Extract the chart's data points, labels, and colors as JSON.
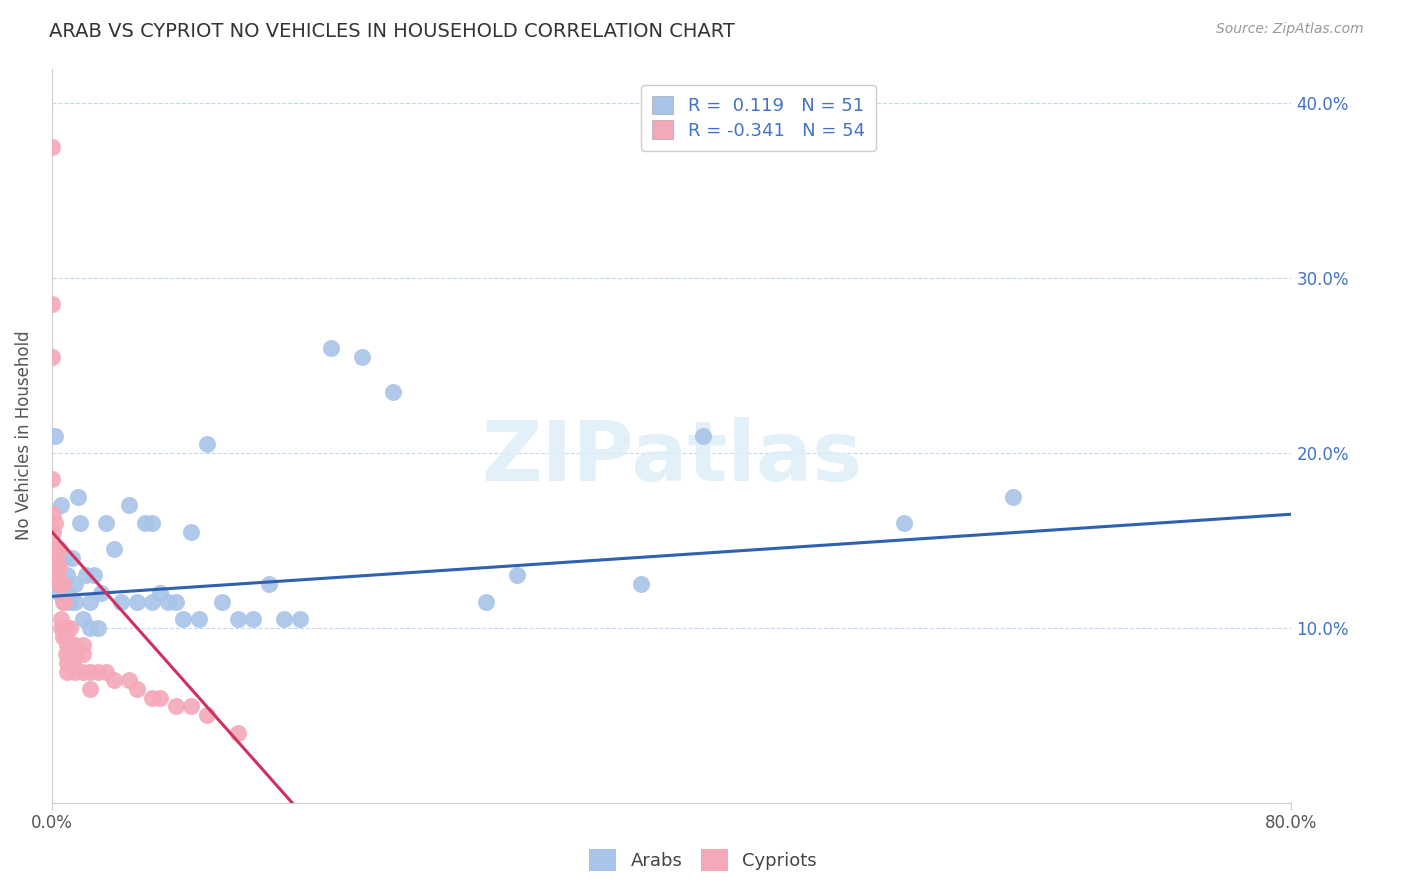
{
  "title": "ARAB VS CYPRIOT NO VEHICLES IN HOUSEHOLD CORRELATION CHART",
  "source": "Source: ZipAtlas.com",
  "ylabel": "No Vehicles in Household",
  "xlim": [
    0.0,
    0.8
  ],
  "ylim": [
    0.0,
    0.42
  ],
  "arab_R": 0.119,
  "arab_N": 51,
  "cypriot_R": -0.341,
  "cypriot_N": 54,
  "arab_color": "#a8c4e8",
  "cypriot_color": "#f4a8b8",
  "arab_line_color": "#3060b0",
  "cypriot_line_color": "#d03060",
  "watermark": "ZIPatlas",
  "background_color": "#ffffff",
  "grid_color": "#c8d8ec",
  "arab_points_x": [
    0.002,
    0.003,
    0.005,
    0.006,
    0.007,
    0.008,
    0.01,
    0.01,
    0.012,
    0.013,
    0.015,
    0.015,
    0.017,
    0.018,
    0.02,
    0.022,
    0.025,
    0.025,
    0.027,
    0.03,
    0.032,
    0.035,
    0.04,
    0.045,
    0.05,
    0.055,
    0.06,
    0.065,
    0.065,
    0.07,
    0.075,
    0.08,
    0.085,
    0.09,
    0.095,
    0.1,
    0.11,
    0.12,
    0.13,
    0.14,
    0.15,
    0.16,
    0.18,
    0.2,
    0.22,
    0.28,
    0.3,
    0.38,
    0.42,
    0.55,
    0.62
  ],
  "arab_points_y": [
    0.21,
    0.135,
    0.12,
    0.17,
    0.125,
    0.14,
    0.12,
    0.13,
    0.115,
    0.14,
    0.115,
    0.125,
    0.175,
    0.16,
    0.105,
    0.13,
    0.1,
    0.115,
    0.13,
    0.1,
    0.12,
    0.16,
    0.145,
    0.115,
    0.17,
    0.115,
    0.16,
    0.16,
    0.115,
    0.12,
    0.115,
    0.115,
    0.105,
    0.155,
    0.105,
    0.205,
    0.115,
    0.105,
    0.105,
    0.125,
    0.105,
    0.105,
    0.26,
    0.255,
    0.235,
    0.115,
    0.13,
    0.125,
    0.21,
    0.16,
    0.175
  ],
  "cypriot_points_x": [
    0.0,
    0.0,
    0.0,
    0.0,
    0.001,
    0.001,
    0.001,
    0.002,
    0.002,
    0.003,
    0.003,
    0.004,
    0.004,
    0.005,
    0.005,
    0.005,
    0.006,
    0.006,
    0.007,
    0.007,
    0.007,
    0.008,
    0.008,
    0.009,
    0.009,
    0.01,
    0.01,
    0.01,
    0.01,
    0.011,
    0.012,
    0.012,
    0.013,
    0.013,
    0.014,
    0.015,
    0.015,
    0.015,
    0.02,
    0.02,
    0.02,
    0.025,
    0.025,
    0.03,
    0.035,
    0.04,
    0.05,
    0.055,
    0.065,
    0.07,
    0.08,
    0.09,
    0.1,
    0.12
  ],
  "cypriot_points_y": [
    0.375,
    0.285,
    0.255,
    0.185,
    0.165,
    0.155,
    0.145,
    0.16,
    0.145,
    0.14,
    0.13,
    0.135,
    0.125,
    0.145,
    0.135,
    0.125,
    0.105,
    0.1,
    0.125,
    0.095,
    0.115,
    0.115,
    0.1,
    0.095,
    0.085,
    0.1,
    0.09,
    0.08,
    0.075,
    0.09,
    0.1,
    0.085,
    0.09,
    0.08,
    0.08,
    0.09,
    0.085,
    0.075,
    0.09,
    0.085,
    0.075,
    0.075,
    0.065,
    0.075,
    0.075,
    0.07,
    0.07,
    0.065,
    0.06,
    0.06,
    0.055,
    0.055,
    0.05,
    0.04
  ],
  "arab_trend_x0": 0.0,
  "arab_trend_x1": 0.8,
  "arab_trend_y0": 0.118,
  "arab_trend_y1": 0.165,
  "cypriot_trend_x0": 0.0,
  "cypriot_trend_x1": 0.155,
  "cypriot_trend_y0": 0.155,
  "cypriot_trend_y1": 0.0
}
